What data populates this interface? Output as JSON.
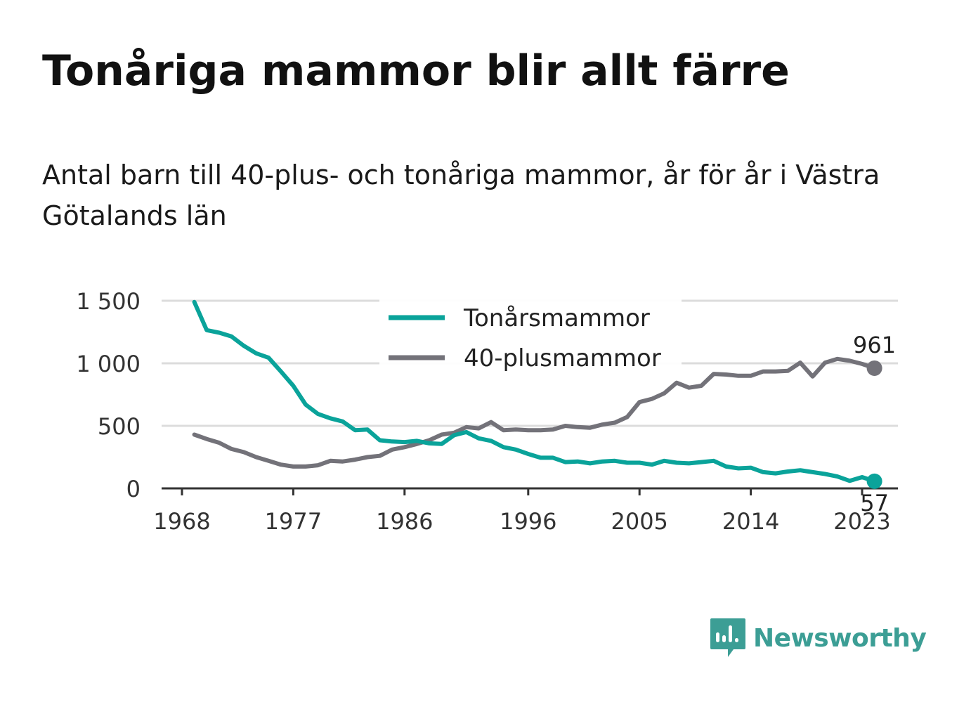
{
  "title": "Tonåriga mammor blir allt färre",
  "subtitle": "Antal barn till 40-plus- och tonåriga mammor, år för år i Västra Götalands län",
  "brand": {
    "name": "Newsworthy",
    "icon": "newsworthy-logo-icon",
    "color": "#3c9e95"
  },
  "chart_data": {
    "type": "line",
    "title": "",
    "xlabel": "",
    "ylabel": "",
    "xlim": [
      1968,
      2023
    ],
    "ylim": [
      0,
      1500
    ],
    "yticks": [
      0,
      500,
      1000,
      1500
    ],
    "ytick_labels": [
      "0",
      "500",
      "1 000",
      "1 500"
    ],
    "xticks": [
      1968,
      1977,
      1986,
      1996,
      2005,
      2014,
      2023
    ],
    "xtick_labels": [
      "1968",
      "1977",
      "1986",
      "1996",
      "2005",
      "2014",
      "2023"
    ],
    "grid": true,
    "legend_position": "top-center",
    "x": [
      1969,
      1970,
      1971,
      1972,
      1973,
      1974,
      1975,
      1976,
      1977,
      1978,
      1979,
      1980,
      1981,
      1982,
      1983,
      1984,
      1985,
      1986,
      1987,
      1988,
      1989,
      1990,
      1991,
      1992,
      1993,
      1994,
      1995,
      1996,
      1997,
      1998,
      1999,
      2000,
      2001,
      2002,
      2003,
      2004,
      2005,
      2006,
      2007,
      2008,
      2009,
      2010,
      2011,
      2012,
      2013,
      2014,
      2015,
      2016,
      2017,
      2018,
      2019,
      2020,
      2021,
      2022,
      2023,
      2024
    ],
    "series": [
      {
        "name": "Tonårsmammor",
        "color": "#0aa39a",
        "end_label": "57",
        "values": [
          1490,
          1265,
          1245,
          1215,
          1140,
          1080,
          1045,
          935,
          820,
          670,
          595,
          560,
          535,
          465,
          470,
          385,
          375,
          370,
          380,
          360,
          355,
          425,
          450,
          400,
          380,
          330,
          310,
          275,
          245,
          245,
          210,
          215,
          200,
          215,
          220,
          205,
          205,
          190,
          220,
          205,
          200,
          210,
          220,
          175,
          160,
          165,
          130,
          120,
          135,
          145,
          130,
          115,
          95,
          60,
          90,
          57
        ]
      },
      {
        "name": "40-plusmammor",
        "color": "#737279",
        "end_label": "961",
        "values": [
          430,
          395,
          365,
          315,
          290,
          250,
          220,
          190,
          175,
          175,
          185,
          220,
          215,
          230,
          250,
          260,
          310,
          330,
          355,
          385,
          430,
          445,
          490,
          480,
          530,
          465,
          470,
          465,
          465,
          470,
          500,
          490,
          485,
          510,
          525,
          570,
          690,
          715,
          760,
          845,
          805,
          820,
          915,
          910,
          900,
          900,
          935,
          935,
          940,
          1005,
          895,
          1005,
          1035,
          1020,
          995,
          961
        ]
      }
    ]
  }
}
